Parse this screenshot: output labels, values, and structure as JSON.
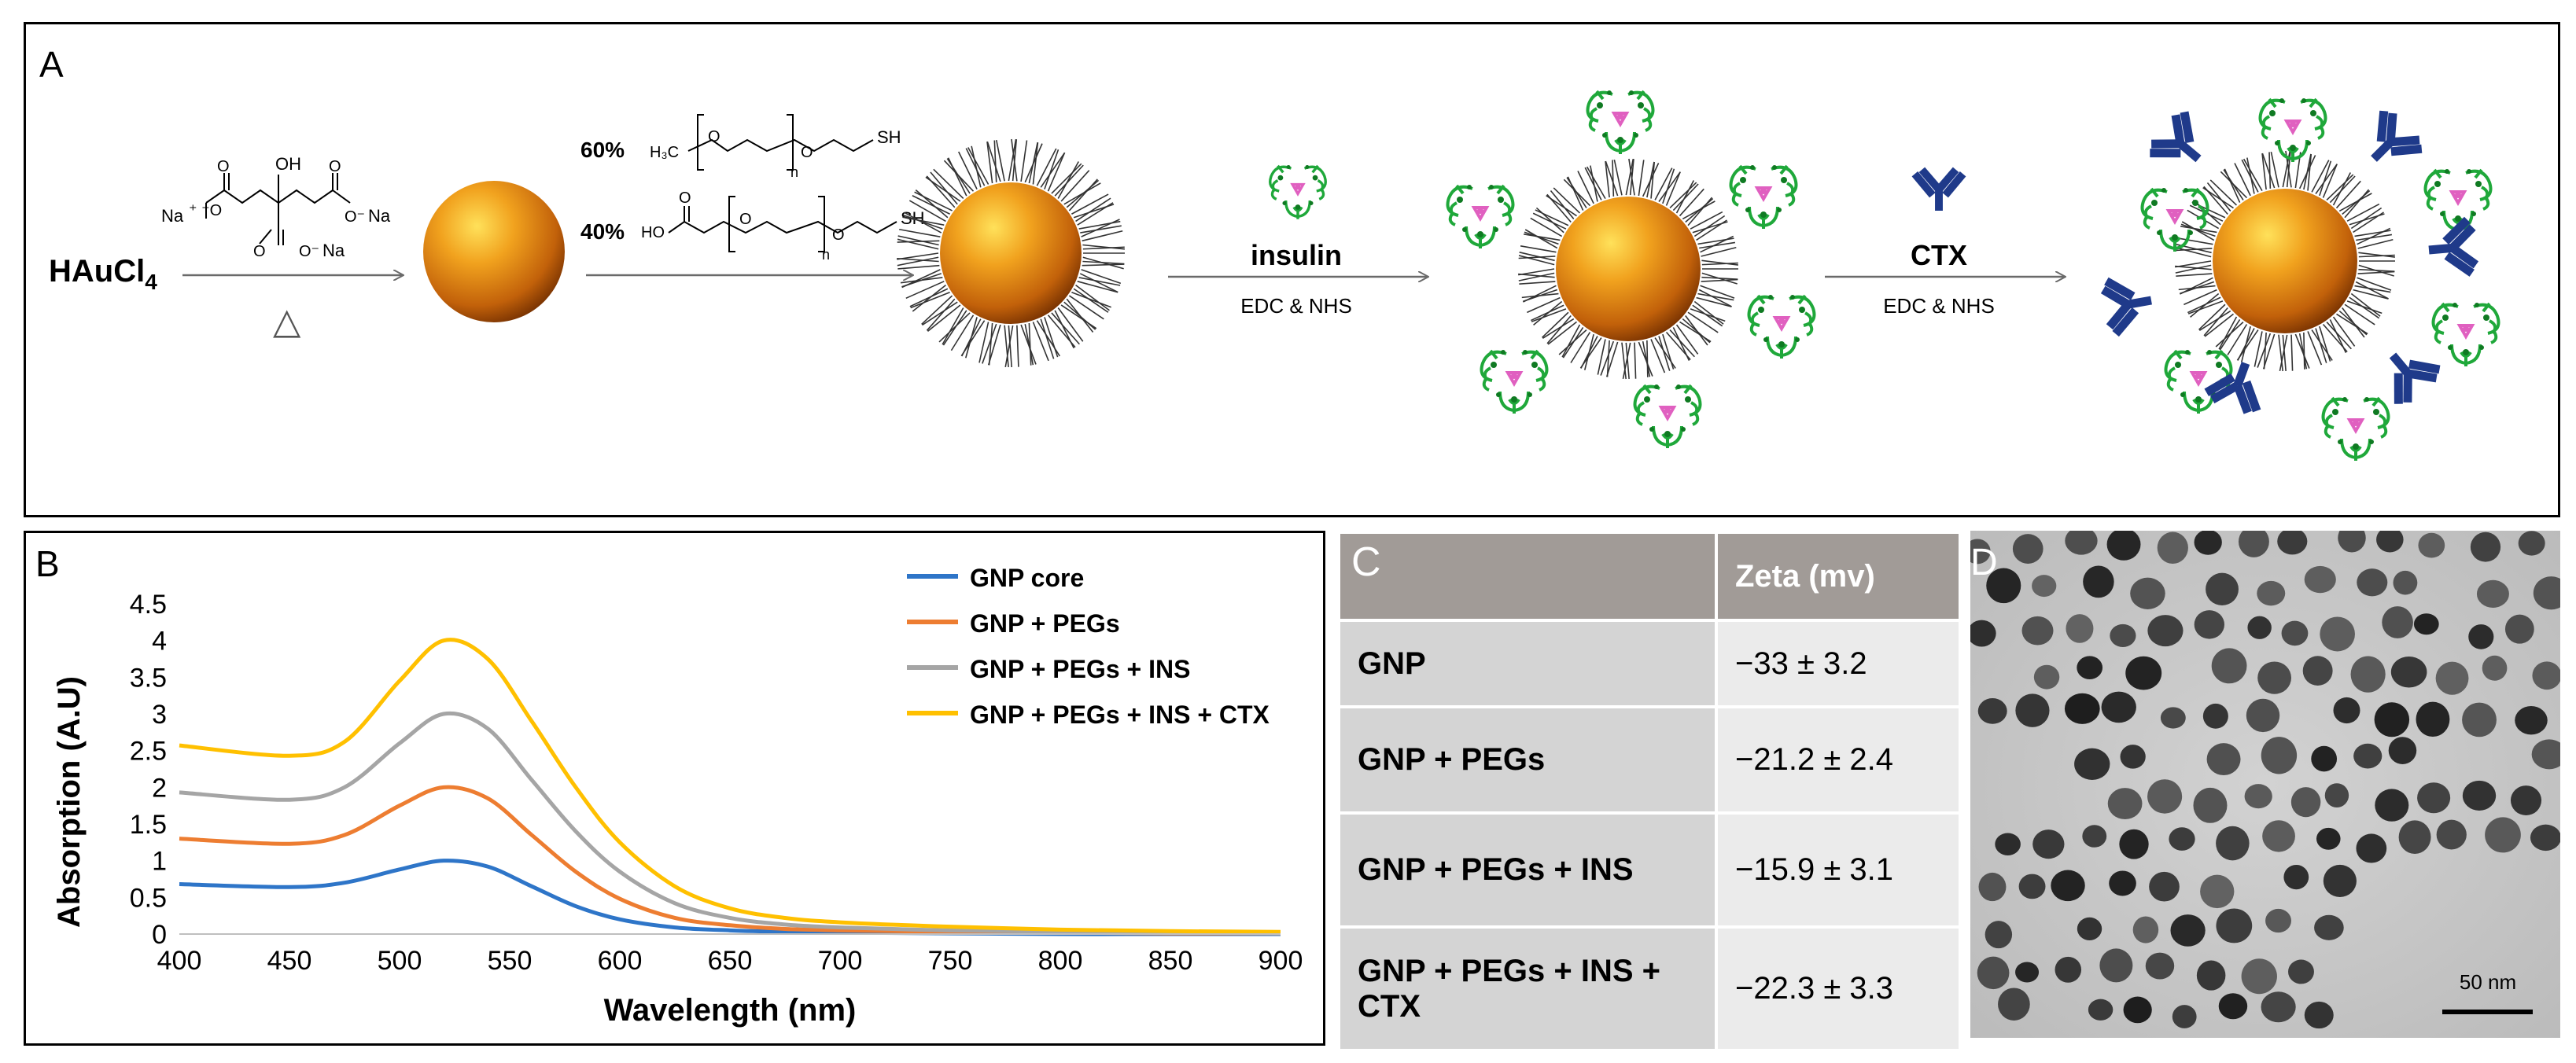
{
  "panel_labels": {
    "a": "A",
    "b": "B",
    "c": "C",
    "d": "D"
  },
  "scheme": {
    "precursor": "HAuCl",
    "precursor_subscript": "4",
    "citrate_na1": "Na",
    "citrate_na2": "Na",
    "citrate_na3": "Na",
    "citrate_oh": "OH",
    "heat_symbol": "△",
    "peg1_percent": "60%",
    "peg2_percent": "40%",
    "peg1_formula": "H₃C",
    "peg_sh": "SH",
    "peg_ho": "HO",
    "peg_n": "n",
    "step3_reagent": "insulin",
    "step3_coupling": "EDC & NHS",
    "step4_reagent": "CTX",
    "step4_coupling": "EDC & NHS",
    "colors": {
      "gold": "#e08a1e",
      "antibody": "#1f3a8a",
      "insulin": "#1fa83a",
      "insulin_core": "#e060c0"
    }
  },
  "chart_data": {
    "type": "line",
    "xlabel": "Wavelength (nm)",
    "ylabel": "Absorption (A.U)",
    "xlim": [
      400,
      900
    ],
    "ylim": [
      0,
      4.5
    ],
    "x_ticks": [
      "400",
      "450",
      "500",
      "550",
      "600",
      "650",
      "700",
      "750",
      "800",
      "850",
      "900"
    ],
    "y_ticks": [
      "0",
      "0.5",
      "1",
      "1.5",
      "2",
      "2.5",
      "3",
      "3.5",
      "4",
      "4.5"
    ],
    "grid": false,
    "legend_position": "top-right",
    "x": [
      400,
      450,
      475,
      500,
      520,
      540,
      560,
      580,
      600,
      625,
      650,
      675,
      700,
      750,
      800,
      850,
      900
    ],
    "series": [
      {
        "name": "GNP core",
        "color": "#2e75c8",
        "values": [
          0.68,
          0.64,
          0.7,
          0.88,
          1.0,
          0.92,
          0.65,
          0.38,
          0.2,
          0.09,
          0.05,
          0.03,
          0.02,
          0.01,
          0.0,
          0.0,
          0.0
        ]
      },
      {
        "name": "GNP + PEGs",
        "color": "#ed7d31",
        "values": [
          1.3,
          1.23,
          1.35,
          1.75,
          2.0,
          1.85,
          1.35,
          0.85,
          0.48,
          0.22,
          0.12,
          0.07,
          0.05,
          0.03,
          0.02,
          0.01,
          0.01
        ]
      },
      {
        "name": "GNP + PEGs + INS",
        "color": "#a5a5a5",
        "values": [
          1.93,
          1.83,
          2.0,
          2.6,
          3.0,
          2.8,
          2.1,
          1.4,
          0.85,
          0.42,
          0.22,
          0.13,
          0.09,
          0.05,
          0.03,
          0.02,
          0.01
        ]
      },
      {
        "name": "GNP + PEGs + INS + CTX",
        "color": "#ffc000",
        "values": [
          2.57,
          2.43,
          2.62,
          3.45,
          4.0,
          3.75,
          2.9,
          2.0,
          1.25,
          0.65,
          0.35,
          0.22,
          0.16,
          0.1,
          0.06,
          0.04,
          0.03
        ]
      }
    ]
  },
  "table": {
    "header": [
      "",
      "Zeta (mv)"
    ],
    "rows": [
      {
        "name": "GNP",
        "value": "−33 ± 3.2"
      },
      {
        "name": "GNP + PEGs",
        "value": "−21.2 ± 2.4"
      },
      {
        "name": "GNP + PEGs + INS",
        "value": "−15.9 ± 3.1"
      },
      {
        "name": "GNP + PEGs + INS + CTX",
        "value": "−22.3 ± 3.3"
      }
    ]
  },
  "tem": {
    "scale_bar_label": "50 nm"
  }
}
